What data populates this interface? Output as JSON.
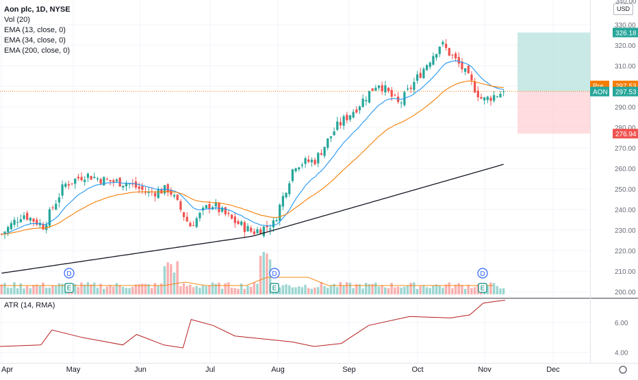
{
  "legend": {
    "title": "Aon plc, 1D, NYSE",
    "lines": [
      "Vol (20)",
      "EMA (13, close, 0)",
      "EMA (34, close, 0)",
      "EMA (200, close, 0)"
    ]
  },
  "atr_legend": "ATR (14, RMA)",
  "axis": {
    "currency": "USD",
    "top_price": "340.00",
    "price_ticks": [
      "330.00",
      "320.00",
      "310.00",
      "300.00",
      "290.00",
      "280.00",
      "270.00",
      "260.00",
      "250.00",
      "240.00",
      "230.00",
      "220.00",
      "210.00",
      "200.00"
    ],
    "atr_ticks": [
      "6.00",
      "4.00"
    ],
    "months": [
      "Apr",
      "May",
      "Jun",
      "Jul",
      "Aug",
      "Sep",
      "Oct",
      "Nov",
      "Dec"
    ],
    "price_labels": [
      {
        "text": "326.18",
        "kind": "target"
      },
      {
        "text": "297.55",
        "kind": "ema13"
      },
      {
        "prefix": "Pre",
        "text": "297.53",
        "kind": "pre"
      },
      {
        "prefix": "AON",
        "text": "297.53",
        "kind": "last"
      },
      {
        "text": "276.94",
        "kind": "stop"
      }
    ]
  },
  "events": {
    "dividend_label": "D",
    "earnings_label": "E"
  },
  "colors": {
    "up": "#26a69a",
    "down": "#ef5350",
    "ema13": "#2196f3",
    "ema34": "#f57c00",
    "ema200": "#131722",
    "atr": "#b71c1c",
    "profit_zone": "#b2dfdb",
    "loss_zone": "#ffcdd2",
    "event_blue": "#2962ff",
    "event_teal": "#00897b"
  },
  "chart_data": {
    "type": "candlestick",
    "symbol": "AON",
    "title": "Aon plc, 1D, NYSE",
    "price_range": [
      197,
      342
    ],
    "atr_range": [
      3.3,
      7.6
    ],
    "position": {
      "entry": 297.53,
      "target": 326.18,
      "stop": 276.94
    },
    "keypoints": [
      {
        "date": "Apr",
        "close": 228
      },
      {
        "date": "mid-Apr",
        "close": 238
      },
      {
        "date": "late-Apr",
        "close": 232
      },
      {
        "date": "early-May",
        "close": 252
      },
      {
        "date": "mid-May",
        "close": 257
      },
      {
        "date": "late-May",
        "close": 254
      },
      {
        "date": "Jun",
        "close": 253
      },
      {
        "date": "mid-Jun",
        "close": 248
      },
      {
        "date": "late-Jun",
        "close": 250
      },
      {
        "date": "late-Jun",
        "close": 232
      },
      {
        "date": "Jul",
        "close": 243
      },
      {
        "date": "mid-Jul",
        "close": 235
      },
      {
        "date": "late-Jul",
        "close": 229
      },
      {
        "date": "late-Jul",
        "close": 233
      },
      {
        "date": "early-Aug",
        "close": 262
      },
      {
        "date": "mid-Aug",
        "close": 264
      },
      {
        "date": "late-Aug",
        "close": 280
      },
      {
        "date": "Sep",
        "close": 290
      },
      {
        "date": "late-Sep",
        "close": 302
      },
      {
        "date": "Oct",
        "close": 291
      },
      {
        "date": "mid-Oct",
        "close": 306
      },
      {
        "date": "late-Oct",
        "close": 321
      },
      {
        "date": "Nov",
        "close": 309
      },
      {
        "date": "early-Nov",
        "close": 293
      },
      {
        "date": "mid-Nov",
        "close": 297.53
      }
    ],
    "ema200": [
      [
        0,
        209
      ],
      [
        0.5,
        227
      ],
      [
        1,
        262
      ]
    ],
    "volume_spikes": [
      {
        "date": "late-Jun"
      },
      {
        "date": "late-Jul"
      }
    ],
    "atr": [
      [
        0.0,
        4.4
      ],
      [
        0.15,
        4.5
      ],
      [
        0.19,
        5.5
      ],
      [
        0.3,
        5.0
      ],
      [
        0.45,
        4.5
      ],
      [
        0.5,
        5.2
      ],
      [
        0.6,
        4.5
      ],
      [
        0.67,
        4.3
      ],
      [
        0.7,
        6.2
      ],
      [
        0.78,
        5.8
      ],
      [
        0.86,
        5.1
      ],
      [
        1.07,
        4.7
      ],
      [
        1.15,
        4.4
      ],
      [
        1.25,
        4.6
      ],
      [
        1.35,
        5.8
      ],
      [
        1.5,
        6.4
      ],
      [
        1.65,
        6.3
      ],
      [
        1.72,
        6.5
      ],
      [
        1.77,
        7.3
      ],
      [
        1.85,
        7.5
      ]
    ]
  }
}
